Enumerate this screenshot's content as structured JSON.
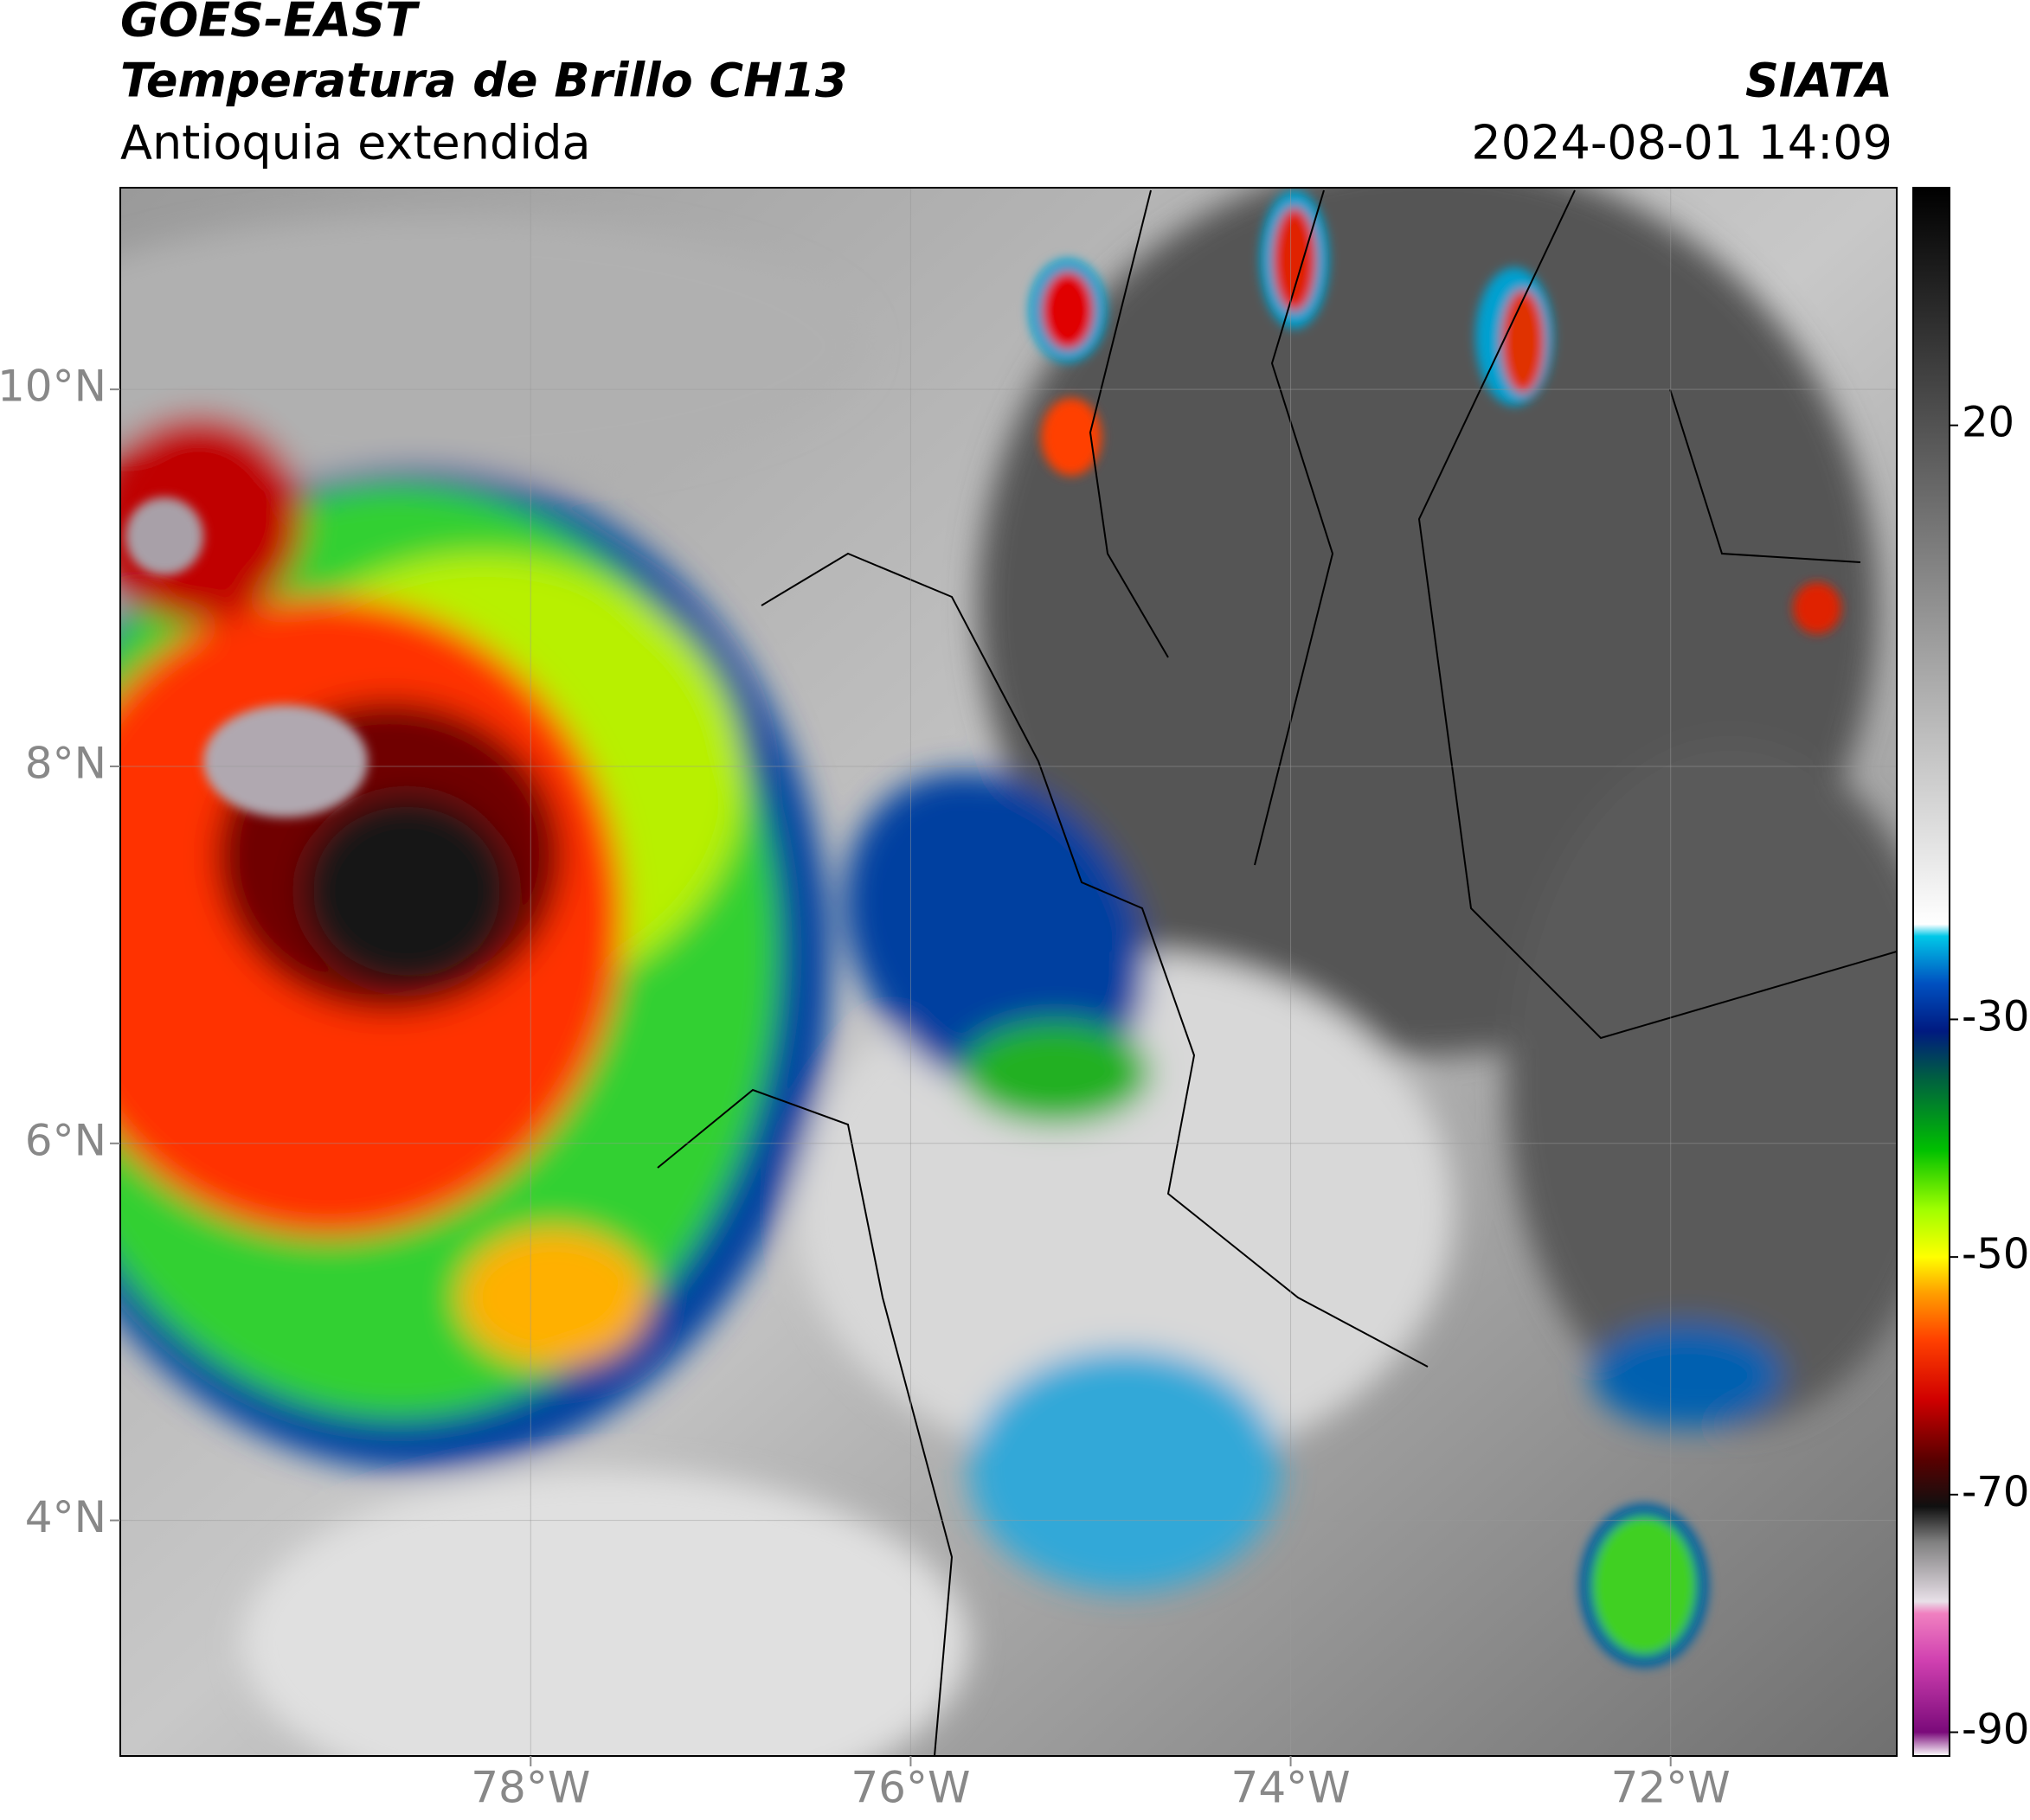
{
  "header": {
    "title_line1": "GOES-EAST",
    "title_line2": "Temperatura de Brillo CH13",
    "subtitle": "Antioquia extendida",
    "source": "SIATA",
    "datetime": "2024-08-01 14:09"
  },
  "map": {
    "xlim": [
      -80.16,
      -70.81
    ],
    "ylim": [
      2.75,
      11.07
    ],
    "xticks": [
      {
        "value": -78,
        "label": "78°W"
      },
      {
        "value": -76,
        "label": "76°W"
      },
      {
        "value": -74,
        "label": "74°W"
      },
      {
        "value": -72,
        "label": "72°W"
      }
    ],
    "yticks": [
      {
        "value": 4,
        "label": "4°N"
      },
      {
        "value": 6,
        "label": "6°N"
      },
      {
        "value": 8,
        "label": "8°N"
      },
      {
        "value": 10,
        "label": "10°N"
      }
    ],
    "grid": true
  },
  "colorbar": {
    "lim": [
      -92,
      40
    ],
    "ticks": [
      -90,
      -70,
      -50,
      -30,
      20
    ],
    "stops": [
      [
        -92,
        "#ffffff"
      ],
      [
        -90,
        "#7a0a7a"
      ],
      [
        -84,
        "#d040b0"
      ],
      [
        -80,
        "#f080c0"
      ],
      [
        -79,
        "#e8e0e8"
      ],
      [
        -74,
        "#808080"
      ],
      [
        -71,
        "#101010"
      ],
      [
        -67,
        "#5a0000"
      ],
      [
        -62,
        "#d00000"
      ],
      [
        -57,
        "#ff4000"
      ],
      [
        -53,
        "#ffa000"
      ],
      [
        -50,
        "#ffff00"
      ],
      [
        -46,
        "#a0ff00"
      ],
      [
        -41,
        "#00c000"
      ],
      [
        -35,
        "#006040"
      ],
      [
        -31,
        "#001a80"
      ],
      [
        -27,
        "#0050c0"
      ],
      [
        -23,
        "#00c8e8"
      ],
      [
        -22,
        "#ffffff"
      ],
      [
        40,
        "#000000"
      ]
    ]
  }
}
